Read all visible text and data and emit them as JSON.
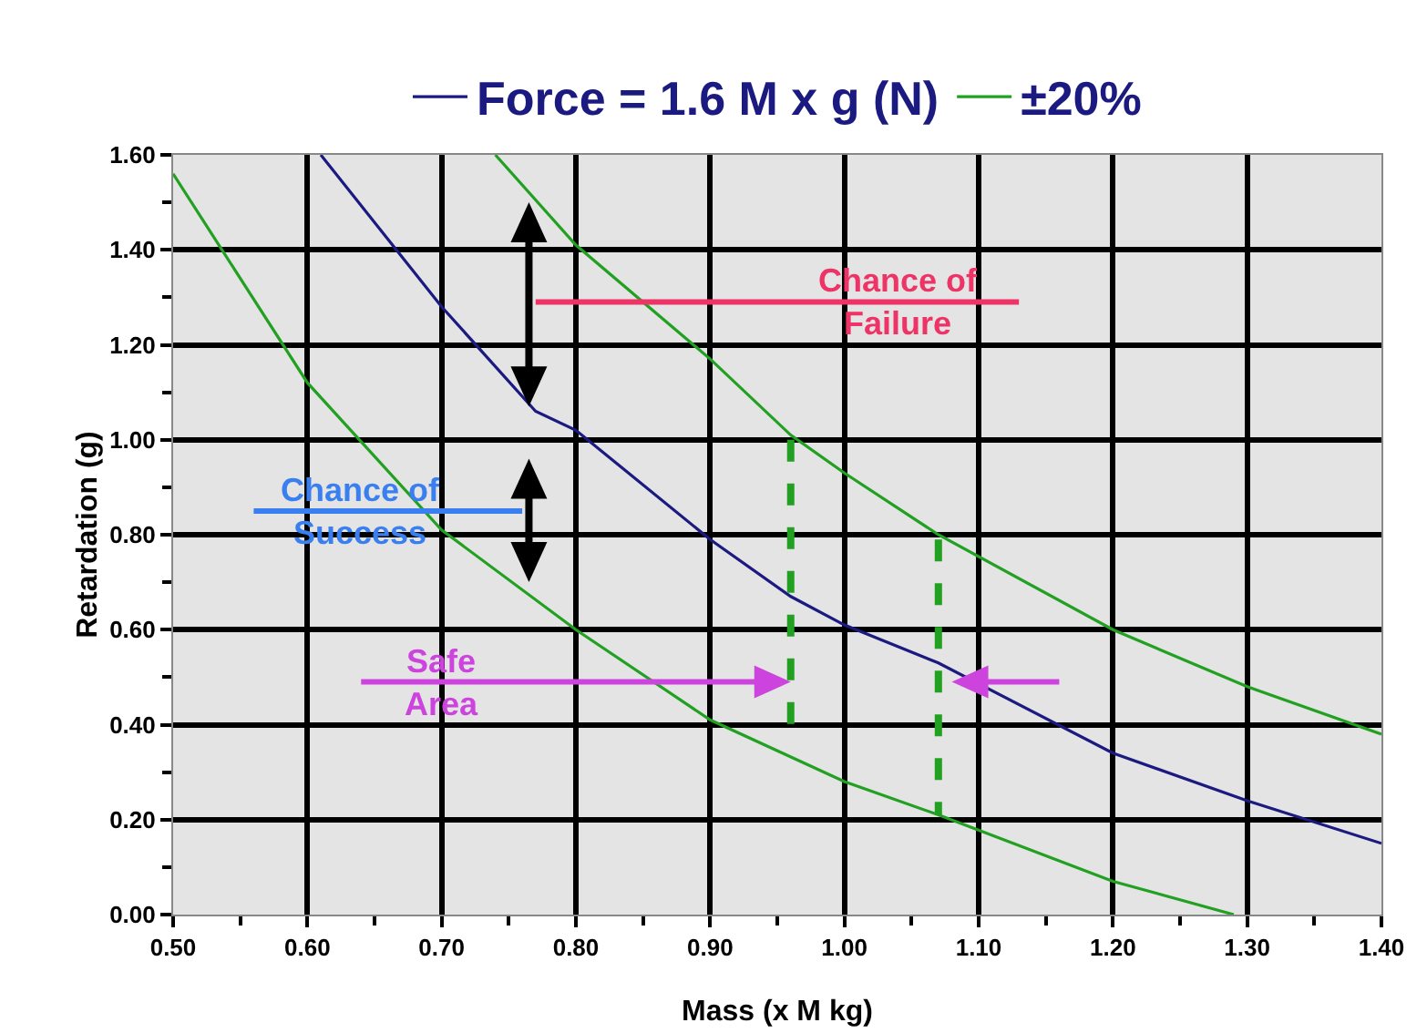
{
  "chart_data": {
    "type": "line",
    "xlabel": "Mass (x M kg)",
    "ylabel": "Retardation (g)",
    "xlim": [
      0.5,
      1.4
    ],
    "ylim": [
      0,
      1.6
    ],
    "xticks": [
      {
        "value": 0.5,
        "label": "0.50"
      },
      {
        "value": 0.6,
        "label": "0.60"
      },
      {
        "value": 0.7,
        "label": "0.70"
      },
      {
        "value": 0.8,
        "label": "0.80"
      },
      {
        "value": 0.9,
        "label": "0.90"
      },
      {
        "value": 1.0,
        "label": "1.00"
      },
      {
        "value": 1.1,
        "label": "1.10"
      },
      {
        "value": 1.2,
        "label": "1.20"
      },
      {
        "value": 1.3,
        "label": "1.30"
      },
      {
        "value": 1.4,
        "label": "1.40"
      }
    ],
    "yticks": [
      {
        "value": 0,
        "label": "0.00"
      },
      {
        "value": 0.2,
        "label": "0.20"
      },
      {
        "value": 0.4,
        "label": "0.40"
      },
      {
        "value": 0.6,
        "label": "0.60"
      },
      {
        "value": 0.8,
        "label": "0.80"
      },
      {
        "value": 1.0,
        "label": "1.00"
      },
      {
        "value": 1.2,
        "label": "1.20"
      },
      {
        "value": 1.4,
        "label": "1.40"
      },
      {
        "value": 1.6,
        "label": "1.60"
      }
    ],
    "grid": true,
    "legend": "top",
    "marker": "none",
    "line_style": "solid",
    "series": [
      {
        "name": "Force = 1.6 M x g (N)",
        "color": "#1a1a80",
        "x": [
          0.61,
          0.7,
          0.77,
          0.8,
          0.9,
          0.96,
          1.0,
          1.07,
          1.2,
          1.3,
          1.4
        ],
        "values": [
          1.6,
          1.28,
          1.06,
          1.02,
          0.79,
          0.67,
          0.61,
          0.53,
          0.34,
          0.24,
          0.15
        ]
      },
      {
        "name": "±20%",
        "color": "#22a022",
        "x": [
          0.74,
          0.8,
          0.9,
          0.96,
          1.0,
          1.07,
          1.2,
          1.3,
          1.4
        ],
        "values": [
          1.6,
          1.41,
          1.17,
          1.01,
          0.93,
          0.8,
          0.6,
          0.48,
          0.38
        ]
      },
      {
        "color": "#22a022",
        "x": [
          0.5,
          0.6,
          0.7,
          0.8,
          0.9,
          1.0,
          1.07,
          1.2,
          1.29
        ],
        "values": [
          1.56,
          1.12,
          0.81,
          0.6,
          0.41,
          0.28,
          0.21,
          0.07,
          0.0
        ]
      },
      {
        "color": "#22a022",
        "line_style": "dashed",
        "x": [
          0.96,
          0.96
        ],
        "values": [
          1.0,
          0.36
        ]
      },
      {
        "color": "#22a022",
        "line_style": "dashed",
        "x": [
          1.07,
          1.07
        ],
        "values": [
          0.79,
          0.21
        ]
      }
    ],
    "annotations": [
      "Chance of\nFailure",
      "Chance of\nSuccess",
      "Safe\nArea"
    ]
  }
}
